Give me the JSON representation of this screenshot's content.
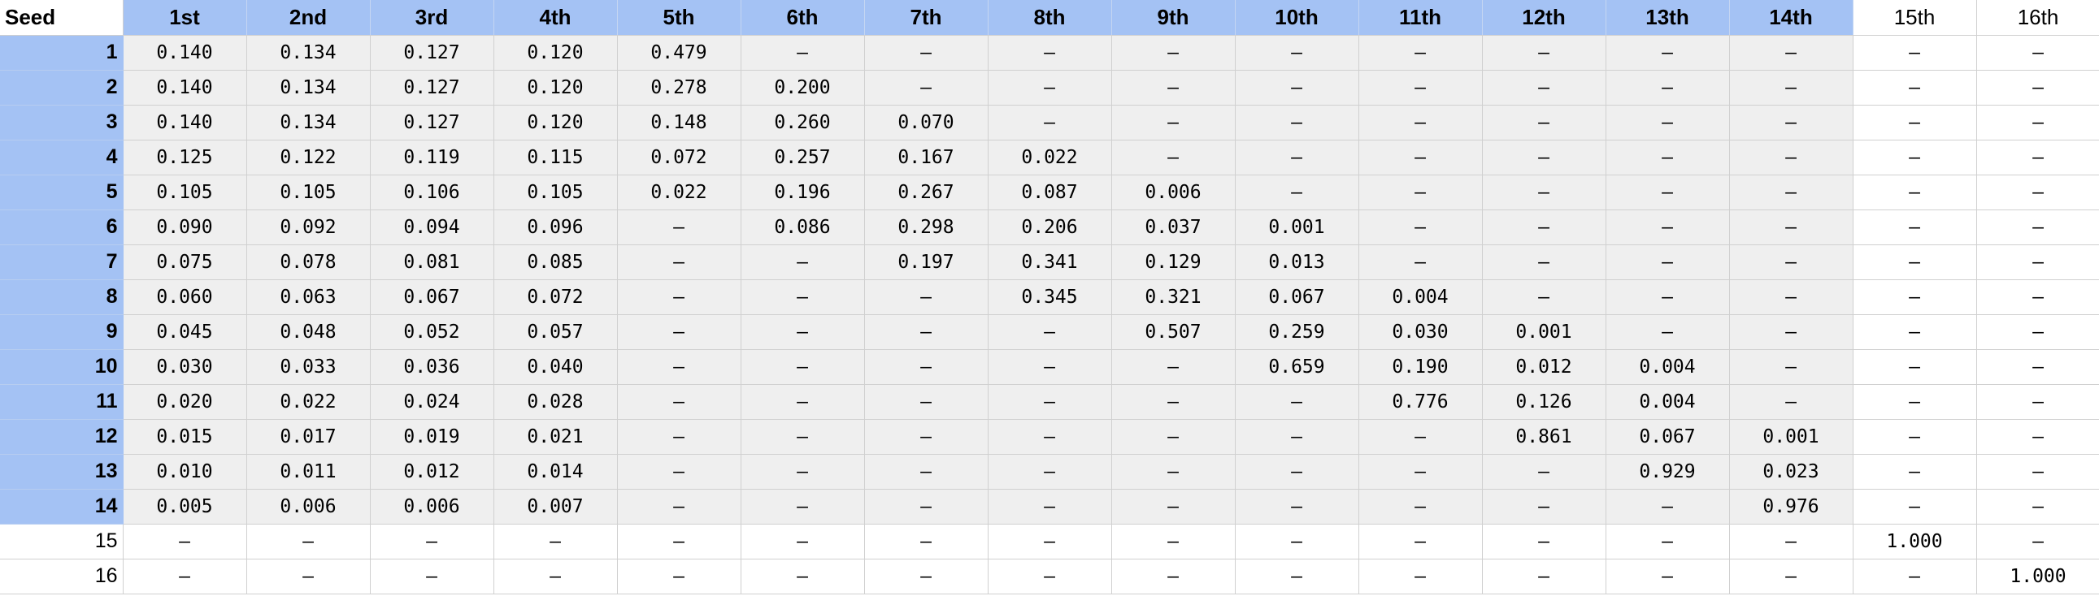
{
  "table": {
    "corner_label": "Seed",
    "columns": [
      "1st",
      "2nd",
      "3rd",
      "4th",
      "5th",
      "6th",
      "7th",
      "8th",
      "9th",
      "10th",
      "11th",
      "12th",
      "13th",
      "14th",
      "15th",
      "16th"
    ],
    "rows": [
      {
        "seed": "1",
        "values": [
          "0.140",
          "0.134",
          "0.127",
          "0.120",
          "0.479",
          "–",
          "–",
          "–",
          "–",
          "–",
          "–",
          "–",
          "–",
          "–",
          "–",
          "–"
        ]
      },
      {
        "seed": "2",
        "values": [
          "0.140",
          "0.134",
          "0.127",
          "0.120",
          "0.278",
          "0.200",
          "–",
          "–",
          "–",
          "–",
          "–",
          "–",
          "–",
          "–",
          "–",
          "–"
        ]
      },
      {
        "seed": "3",
        "values": [
          "0.140",
          "0.134",
          "0.127",
          "0.120",
          "0.148",
          "0.260",
          "0.070",
          "–",
          "–",
          "–",
          "–",
          "–",
          "–",
          "–",
          "–",
          "–"
        ]
      },
      {
        "seed": "4",
        "values": [
          "0.125",
          "0.122",
          "0.119",
          "0.115",
          "0.072",
          "0.257",
          "0.167",
          "0.022",
          "–",
          "–",
          "–",
          "–",
          "–",
          "–",
          "–",
          "–"
        ]
      },
      {
        "seed": "5",
        "values": [
          "0.105",
          "0.105",
          "0.106",
          "0.105",
          "0.022",
          "0.196",
          "0.267",
          "0.087",
          "0.006",
          "–",
          "–",
          "–",
          "–",
          "–",
          "–",
          "–"
        ]
      },
      {
        "seed": "6",
        "values": [
          "0.090",
          "0.092",
          "0.094",
          "0.096",
          "–",
          "0.086",
          "0.298",
          "0.206",
          "0.037",
          "0.001",
          "–",
          "–",
          "–",
          "–",
          "–",
          "–"
        ]
      },
      {
        "seed": "7",
        "values": [
          "0.075",
          "0.078",
          "0.081",
          "0.085",
          "–",
          "–",
          "0.197",
          "0.341",
          "0.129",
          "0.013",
          "–",
          "–",
          "–",
          "–",
          "–",
          "–"
        ]
      },
      {
        "seed": "8",
        "values": [
          "0.060",
          "0.063",
          "0.067",
          "0.072",
          "–",
          "–",
          "–",
          "0.345",
          "0.321",
          "0.067",
          "0.004",
          "–",
          "–",
          "–",
          "–",
          "–"
        ]
      },
      {
        "seed": "9",
        "values": [
          "0.045",
          "0.048",
          "0.052",
          "0.057",
          "–",
          "–",
          "–",
          "–",
          "0.507",
          "0.259",
          "0.030",
          "0.001",
          "–",
          "–",
          "–",
          "–"
        ]
      },
      {
        "seed": "10",
        "values": [
          "0.030",
          "0.033",
          "0.036",
          "0.040",
          "–",
          "–",
          "–",
          "–",
          "–",
          "0.659",
          "0.190",
          "0.012",
          "0.004",
          "–",
          "–",
          "–"
        ]
      },
      {
        "seed": "11",
        "values": [
          "0.020",
          "0.022",
          "0.024",
          "0.028",
          "–",
          "–",
          "–",
          "–",
          "–",
          "–",
          "0.776",
          "0.126",
          "0.004",
          "–",
          "–",
          "–"
        ]
      },
      {
        "seed": "12",
        "values": [
          "0.015",
          "0.017",
          "0.019",
          "0.021",
          "–",
          "–",
          "–",
          "–",
          "–",
          "–",
          "–",
          "0.861",
          "0.067",
          "0.001",
          "–",
          "–"
        ]
      },
      {
        "seed": "13",
        "values": [
          "0.010",
          "0.011",
          "0.012",
          "0.014",
          "–",
          "–",
          "–",
          "–",
          "–",
          "–",
          "–",
          "–",
          "0.929",
          "0.023",
          "–",
          "–"
        ]
      },
      {
        "seed": "14",
        "values": [
          "0.005",
          "0.006",
          "0.006",
          "0.007",
          "–",
          "–",
          "–",
          "–",
          "–",
          "–",
          "–",
          "–",
          "–",
          "0.976",
          "–",
          "–"
        ]
      },
      {
        "seed": "15",
        "values": [
          "–",
          "–",
          "–",
          "–",
          "–",
          "–",
          "–",
          "–",
          "–",
          "–",
          "–",
          "–",
          "–",
          "–",
          "1.000",
          "–"
        ]
      },
      {
        "seed": "16",
        "values": [
          "–",
          "–",
          "–",
          "–",
          "–",
          "–",
          "–",
          "–",
          "–",
          "–",
          "–",
          "–",
          "–",
          "–",
          "–",
          "1.000"
        ]
      }
    ]
  },
  "colors": {
    "header_blue": "#a4c2f4",
    "shaded_cell": "#efefef",
    "gridline": "#d0d0d0"
  }
}
